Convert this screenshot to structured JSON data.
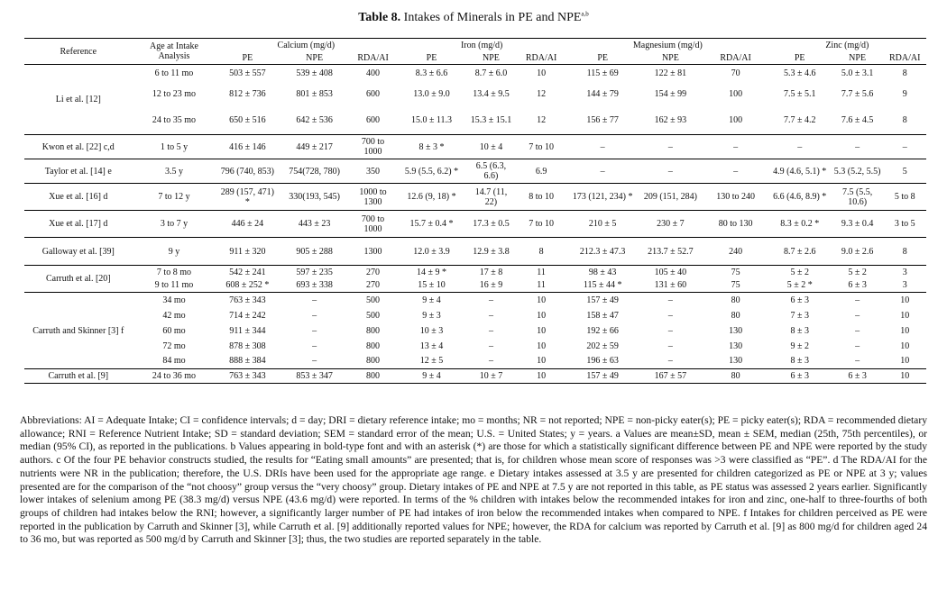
{
  "caption": {
    "label": "Table 8.",
    "text": "Intakes of Minerals in PE and NPE",
    "sup": "a,b"
  },
  "header": {
    "reference": "Reference",
    "age": "Age at Intake Analysis",
    "groups": [
      "Calcium (mg/d)",
      "Iron (mg/d)",
      "Magnesium (mg/d)",
      "Zinc (mg/d)"
    ],
    "sub": [
      "PE",
      "NPE",
      "RDA/AI",
      "PE",
      "NPE",
      "RDA/AI",
      "PE",
      "NPE",
      "RDA/AI",
      "PE",
      "NPE",
      "RDA/AI"
    ]
  },
  "rows": [
    {
      "ref": "Li et al. [12]",
      "age": "6 to 11 mo",
      "cells": [
        "503 ± 557",
        "539 ± 408",
        "400",
        "8.3 ± 6.6",
        "8.7 ± 6.0",
        "10",
        "115 ± 69",
        "122 ± 81",
        "70",
        "5.3 ± 4.6",
        "5.0 ± 3.1",
        "8"
      ],
      "bold": [],
      "span": 3,
      "h": 20
    },
    {
      "age": "12 to 23 mo",
      "cells": [
        "812 ± 736",
        "801 ± 853",
        "600",
        "13.0 ± 9.0",
        "13.4 ± 9.5",
        "12",
        "144 ± 79",
        "154 ± 99",
        "100",
        "7.5 ± 5.1",
        "7.7 ± 5.6",
        "9"
      ],
      "bold": [],
      "h": 26
    },
    {
      "age": "24 to 35 mo",
      "cells": [
        "650 ± 516",
        "642 ± 536",
        "600",
        "15.0 ± 11.3",
        "15.3 ± 15.1",
        "12",
        "156 ± 77",
        "162 ± 93",
        "100",
        "7.7 ± 4.2",
        "7.6 ± 4.5",
        "8"
      ],
      "bold": [],
      "h": 32
    },
    {
      "ref": "Kwon et al. [22] c,d",
      "age": "1 to 5 y",
      "cells": [
        "416 ± 146",
        "449 ± 217",
        "700 to 1000",
        "8 ± 3 *",
        "10 ± 4",
        "7 to 10",
        "–",
        "–",
        "–",
        "–",
        "–",
        "–"
      ],
      "bold": [
        3,
        4
      ],
      "span": 1,
      "h": 27
    },
    {
      "ref": "Taylor et al. [14] e",
      "age": "3.5 y",
      "cells": [
        "796 (740, 853)",
        "754(728, 780)",
        "350",
        "5.9 (5.5, 6.2) *",
        "6.5 (6.3, 6.6)",
        "6.9",
        "–",
        "–",
        "–",
        "4.9 (4.6, 5.1) *",
        "5.3 (5.2, 5.5)",
        "5"
      ],
      "bold": [
        3,
        4,
        9,
        10
      ],
      "span": 1,
      "h": 27
    },
    {
      "ref": "Xue et al. [16] d",
      "age": "7 to 12 y",
      "cells": [
        "289 (157, 471) *",
        "330(193, 545)",
        "1000 to 1300",
        "12.6 (9, 18) *",
        "14.7 (11, 22)",
        "8 to 10",
        "173 (121, 234) *",
        "209 (151, 284)",
        "130 to 240",
        "6.6 (4.6, 8.9) *",
        "7.5 (5.5, 10.6)",
        "5 to 8"
      ],
      "bold": [
        0,
        1,
        3,
        4,
        6,
        7,
        9,
        10
      ],
      "span": 1,
      "h": 30
    },
    {
      "ref": "Xue et al. [17] d",
      "age": "3 to 7 y",
      "cells": [
        "446 ± 24",
        "443 ± 23",
        "700 to 1000",
        "15.7 ± 0.4 *",
        "17.3 ± 0.5",
        "7 to 10",
        "210 ± 5",
        "230 ± 7",
        "80 to 130",
        "8.3 ± 0.2 *",
        "9.3 ± 0.4",
        "3 to 5"
      ],
      "bold": [
        3,
        4,
        9,
        10
      ],
      "span": 1,
      "h": 30
    },
    {
      "ref": "Galloway et al. [39]",
      "age": "9 y",
      "cells": [
        "911 ± 320",
        "905 ± 288",
        "1300",
        "12.0 ± 3.9",
        "12.9 ± 3.8",
        "8",
        "212.3 ± 47.3",
        "213.7 ± 52.7",
        "240",
        "8.7 ± 2.6",
        "9.0 ± 2.6",
        "8"
      ],
      "bold": [],
      "span": 1,
      "h": 31
    },
    {
      "ref": "Carruth et al. [20]",
      "age": "7 to 8 mo",
      "cells": [
        "542 ± 241",
        "597 ± 235",
        "270",
        "14 ± 9 *",
        "17 ± 8",
        "11",
        "98 ± 43",
        "105 ± 40",
        "75",
        "5 ± 2",
        "5 ± 2",
        "3"
      ],
      "bold": [
        3,
        4
      ],
      "span": 2,
      "h": 15
    },
    {
      "age": "9 to 11 mo",
      "cells": [
        "608 ± 252 *",
        "693 ± 338",
        "270",
        "15 ± 10",
        "16 ± 9",
        "11",
        "115 ± 44 *",
        "131 ± 60",
        "75",
        "5 ± 2 *",
        "6 ± 3",
        "3"
      ],
      "bold": [
        0,
        1,
        6,
        7,
        9,
        10
      ],
      "h": 15
    },
    {
      "ref": "Carruth and Skinner [3] f",
      "age": "34 mo",
      "cells": [
        "763 ± 343",
        "–",
        "500",
        "9 ± 4",
        "–",
        "10",
        "157 ± 49",
        "–",
        "80",
        "6 ± 3",
        "–",
        "10"
      ],
      "bold": [],
      "span": 5,
      "h": 17
    },
    {
      "age": "42 mo",
      "cells": [
        "714 ± 242",
        "–",
        "500",
        "9 ± 3",
        "–",
        "10",
        "158 ± 47",
        "–",
        "80",
        "7 ± 3",
        "–",
        "10"
      ],
      "bold": [],
      "h": 17
    },
    {
      "age": "60 mo",
      "cells": [
        "911 ± 344",
        "–",
        "800",
        "10 ± 3",
        "–",
        "10",
        "192 ± 66",
        "–",
        "130",
        "8 ± 3",
        "–",
        "10"
      ],
      "bold": [],
      "h": 17
    },
    {
      "age": "72 mo",
      "cells": [
        "878 ± 308",
        "–",
        "800",
        "13 ± 4",
        "–",
        "10",
        "202 ± 59",
        "–",
        "130",
        "9 ± 2",
        "–",
        "10"
      ],
      "bold": [],
      "h": 17
    },
    {
      "age": "84 mo",
      "cells": [
        "888 ± 384",
        "–",
        "800",
        "12 ± 5",
        "–",
        "10",
        "196 ± 63",
        "–",
        "130",
        "8 ± 3",
        "–",
        "10"
      ],
      "bold": [],
      "h": 17
    },
    {
      "ref": "Carruth et al. [9]",
      "age": "24 to 36 mo",
      "cells": [
        "763 ± 343",
        "853 ± 347",
        "800",
        "9 ± 4",
        "10 ± 7",
        "10",
        "157 ± 49",
        "167 ± 57",
        "80",
        "6 ± 3",
        "6 ± 3",
        "10"
      ],
      "bold": [],
      "span": 1,
      "h": 16
    }
  ],
  "notes": "Abbreviations: AI = Adequate Intake; CI = confidence intervals; d = day; DRI = dietary reference intake; mo = months; NR = not reported; NPE = non-picky eater(s); PE = picky eater(s); RDA = recommended dietary allowance; RNI = Reference Nutrient Intake; SD = standard deviation; SEM = standard error of the mean; U.S. = United States; y = years. a Values are mean±SD, mean ± SEM, median (25th, 75th percentiles), or median (95% CI), as reported in the publications. b Values appearing in bold-type font and with an asterisk (*) are those for which a statistically significant difference between PE and NPE were reported by the study authors. c Of the four PE behavior constructs studied, the results for “Eating small amounts” are presented; that is, for children whose mean score of responses was >3 were classified as “PE”. d The RDA/AI for the nutrients were NR in the publication; therefore, the U.S. DRIs have been used for the appropriate age range. e Dietary intakes assessed at 3.5 y are presented for children categorized as PE or NPE at 3 y; values presented are for the comparison of the “not choosy” group versus the “very choosy” group. Dietary intakes of PE and NPE at 7.5 y are not reported in this table, as PE status was assessed 2 years earlier. Significantly lower intakes of selenium among PE (38.3 mg/d) versus NPE (43.6 mg/d) were reported. In terms of the % children with intakes below the recommended intakes for iron and zinc, one-half to three-fourths of both groups of children had intakes below the RNI; however, a significantly larger number of PE had intakes of iron below the recommended intakes when compared to NPE. f Intakes for children perceived as PE were reported in the publication by Carruth and Skinner [3], while Carruth et al. [9] additionally reported values for NPE; however, the RDA for calcium was reported by Carruth et al. [9] as 800 mg/d for children aged 24 to 36 mo, but was reported as 500 mg/d by Carruth and Skinner [3]; thus, the two studies are reported separately in the table."
}
